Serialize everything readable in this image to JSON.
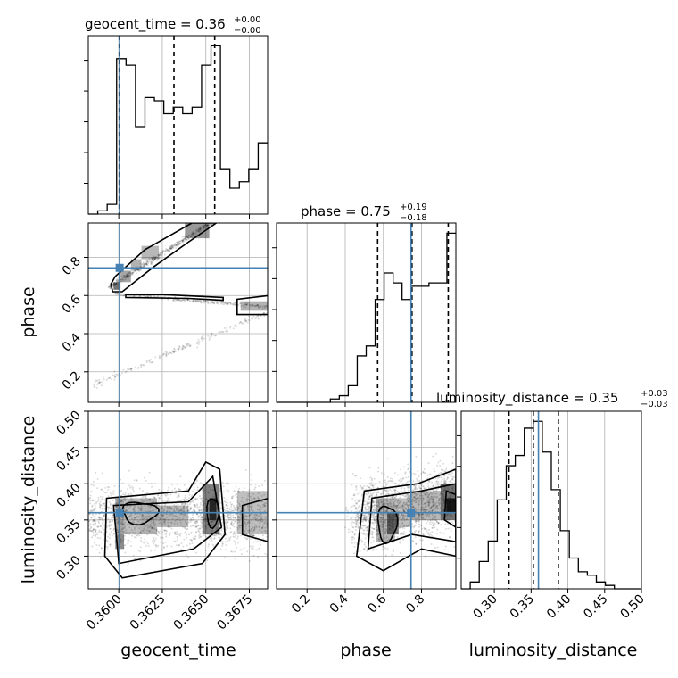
{
  "chart_data": {
    "type": "corner",
    "parameters": [
      {
        "name": "geocent_time",
        "label": "geocent_time",
        "title": "geocent_time = 0.36",
        "median": 0.36,
        "err_plus": "+0.00",
        "err_minus": "−0.00",
        "range": [
          0.35825,
          0.36855
        ],
        "ticks": [
          0.36,
          0.3625,
          0.365,
          0.3675
        ],
        "tick_labels": [
          "0.3600",
          "0.3625",
          "0.3650",
          "0.3675"
        ],
        "truth": 0.36005,
        "quantiles": [
          0.36003,
          0.36317,
          0.36551
        ]
      },
      {
        "name": "phase",
        "label": "phase",
        "title": "phase = 0.75",
        "median": 0.75,
        "err_plus": "+0.19",
        "err_minus": "−0.18",
        "range": [
          0.04,
          0.98
        ],
        "ticks": [
          0.2,
          0.4,
          0.6,
          0.8
        ],
        "tick_labels": [
          "0.2",
          "0.4",
          "0.6",
          "0.8"
        ],
        "truth": 0.745,
        "quantiles": [
          0.57,
          0.75,
          0.94
        ]
      },
      {
        "name": "luminosity_distance",
        "label": "luminosity_distance",
        "title": "luminosity_distance = 0.35",
        "median": 0.35,
        "err_plus": "+0.03",
        "err_minus": "−0.03",
        "range": [
          0.255,
          0.5
        ],
        "ticks": [
          0.3,
          0.35,
          0.4,
          0.45,
          0.5
        ],
        "tick_labels": [
          "0.30",
          "0.35",
          "0.40",
          "0.45",
          "0.50"
        ],
        "truth": 0.36,
        "quantiles": [
          0.32,
          0.353,
          0.387
        ]
      }
    ],
    "histograms": [
      {
        "parameter": "geocent_time",
        "counts": [
          0,
          1,
          3,
          48,
          46,
          27,
          36,
          35,
          31,
          33,
          31,
          33,
          46,
          52,
          14,
          8,
          10,
          14,
          22
        ]
      },
      {
        "parameter": "phase",
        "counts": [
          0,
          0,
          0,
          0,
          0,
          0,
          1,
          2,
          5,
          14,
          17,
          31,
          39,
          36,
          31,
          35,
          35,
          36,
          36,
          51
        ]
      },
      {
        "parameter": "luminosity_distance",
        "counts": [
          0,
          2,
          8,
          14,
          26,
          36,
          39,
          47,
          49,
          40,
          29,
          17,
          9,
          5,
          4,
          2,
          1,
          0,
          0,
          0
        ]
      }
    ],
    "grid": true
  }
}
